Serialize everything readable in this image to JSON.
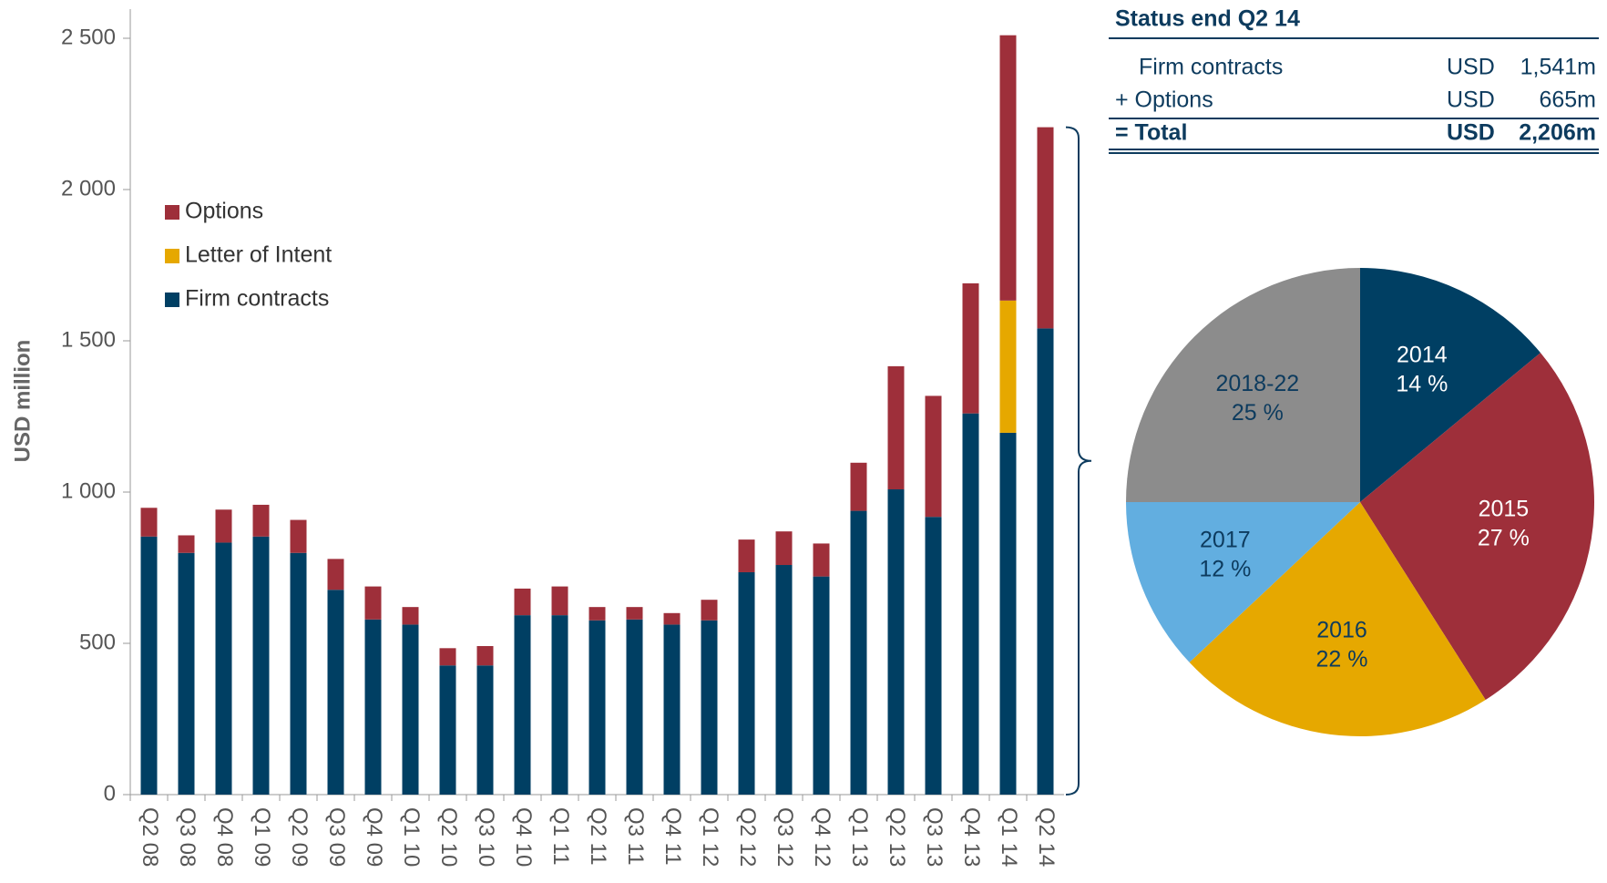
{
  "chart_data": [
    {
      "type": "bar",
      "stacked": true,
      "y_label": "USD million",
      "categories": [
        "Q2 08",
        "Q3 08",
        "Q4 08",
        "Q1 09",
        "Q2 09",
        "Q3 09",
        "Q4 09",
        "Q1 10",
        "Q2 10",
        "Q3 10",
        "Q4 10",
        "Q1 11",
        "Q2 11",
        "Q3 11",
        "Q4 11",
        "Q1 12",
        "Q2 12",
        "Q3 12",
        "Q4 12",
        "Q1 13",
        "Q2 13",
        "Q3 13",
        "Q4 13",
        "Q1 14",
        "Q2 14"
      ],
      "series": [
        {
          "name": "Firm contracts",
          "color": "#003f63",
          "values": [
            853,
            799,
            833,
            853,
            799,
            677,
            579,
            562,
            427,
            427,
            593,
            593,
            576,
            579,
            562,
            576,
            735,
            759,
            721,
            938,
            1009,
            918,
            1260,
            1196,
            1541
          ]
        },
        {
          "name": "Letter of Intent",
          "color": "#e6a800",
          "values": [
            0,
            0,
            0,
            0,
            0,
            0,
            0,
            0,
            0,
            0,
            0,
            0,
            0,
            0,
            0,
            0,
            0,
            0,
            0,
            0,
            0,
            0,
            0,
            437,
            0
          ]
        },
        {
          "name": "Options",
          "color": "#9e2f3a",
          "values": [
            95,
            58,
            109,
            105,
            109,
            102,
            109,
            58,
            57,
            64,
            88,
            95,
            44,
            41,
            38,
            68,
            108,
            111,
            109,
            159,
            407,
            400,
            430,
            877,
            665
          ]
        }
      ],
      "ylim": [
        0,
        2500
      ],
      "yticks": [
        0,
        500,
        {
          "value": 1000,
          "label": "1 000"
        },
        {
          "value": 1500,
          "label": "1 500"
        },
        {
          "value": 2000,
          "label": "2 000"
        },
        {
          "value": 2500,
          "label": "2 500"
        }
      ],
      "legend": "upper left"
    },
    {
      "type": "table",
      "title": "Status end Q2 14",
      "rows": [
        [
          "Firm contracts",
          "USD",
          "1,541m"
        ],
        [
          "+ Options",
          "USD",
          "665m"
        ],
        [
          "= Total",
          "USD",
          "2,206m"
        ]
      ]
    },
    {
      "type": "pie",
      "categories": [
        "2014",
        "2015",
        "2016",
        "2017",
        "2018-22"
      ],
      "values": [
        14,
        27,
        22,
        12,
        25
      ],
      "value_labels": [
        "14 %",
        "27 %",
        "22 %",
        "12 %",
        "25 %"
      ],
      "colors": [
        "#003f63",
        "#9e2f3a",
        "#e6a800",
        "#62aee0",
        "#8c8c8c"
      ],
      "label_colors": [
        "#ffffff",
        "#ffffff",
        "#0d3b5e",
        "#0d3b5e",
        "#0d3b5e"
      ]
    }
  ]
}
